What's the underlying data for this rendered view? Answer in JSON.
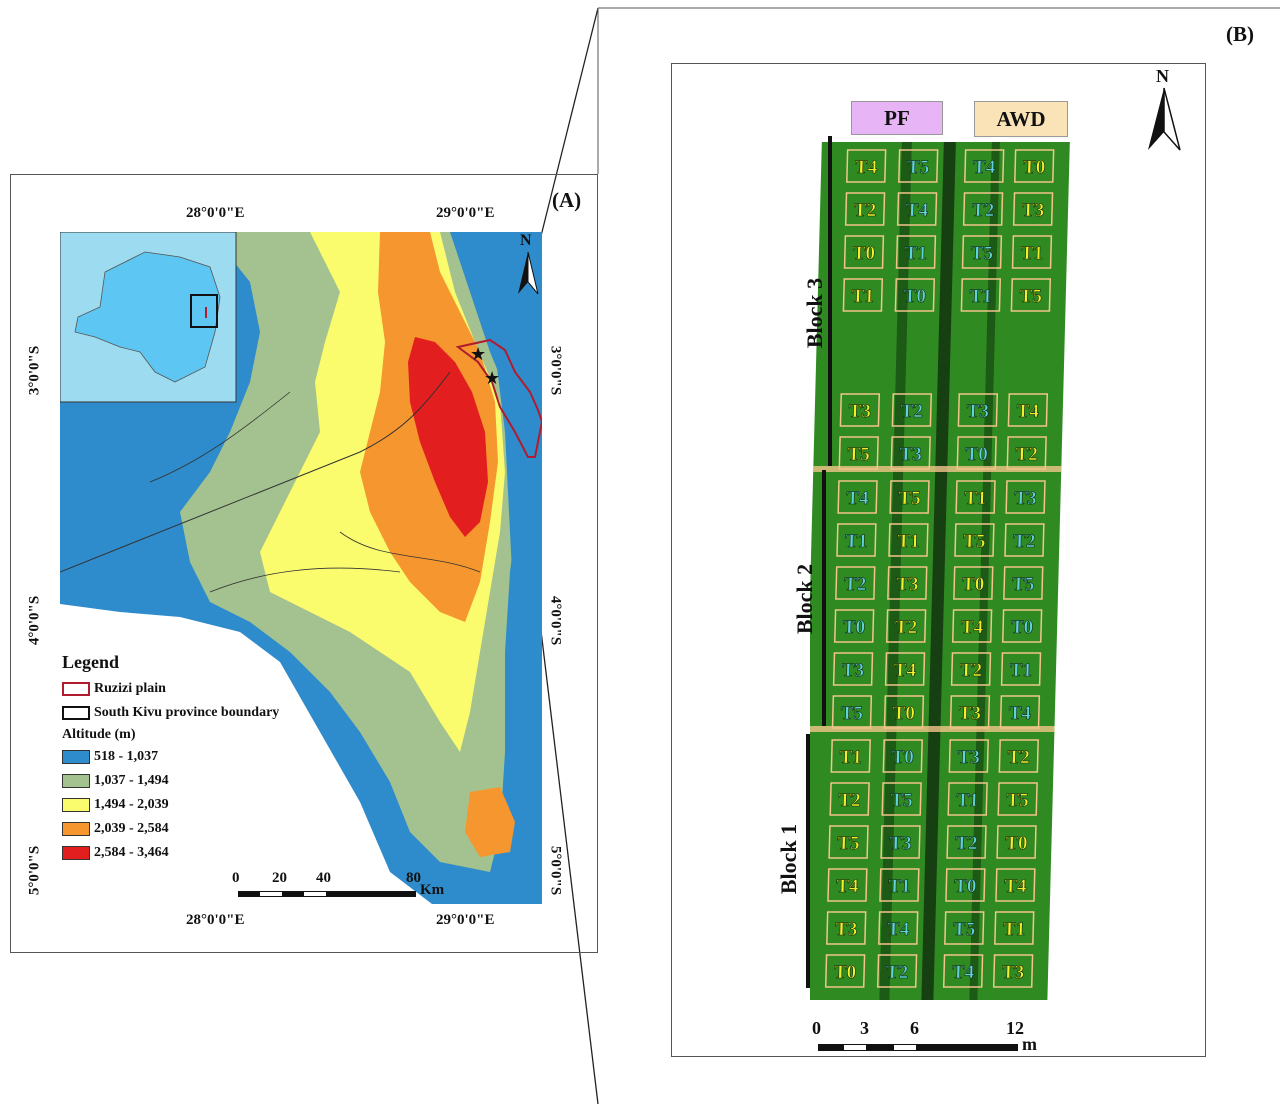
{
  "panel_a": {
    "label": "(A)",
    "top_coords": [
      "28°0'0\"E",
      "29°0'0\"E"
    ],
    "bottom_coords": [
      "28°0'0\"E",
      "29°0'0\"E"
    ],
    "left_coords": [
      "3°0'0\"S",
      "4°0'0\"S",
      "5°0'0\"S"
    ],
    "right_coords": [
      "3°0'0\"S",
      "4°0'0\"S",
      "5°0'0\"S"
    ],
    "north": "N",
    "legend": {
      "title": "Legend",
      "ruzizi": "Ruzizi plain",
      "province": "South Kivu province boundary",
      "altitude_title": "Altitude (m)",
      "classes": [
        {
          "label": "518 - 1,037",
          "color": "#2f8ccc"
        },
        {
          "label": "1,037 - 1,494",
          "color": "#a3c28f"
        },
        {
          "label": "1,494 - 2,039",
          "color": "#fbfb6e"
        },
        {
          "label": "2,039 - 2,584",
          "color": "#f6962f"
        },
        {
          "label": "2,584 - 3,464",
          "color": "#e31e1e"
        }
      ]
    },
    "scale": {
      "ticks": [
        "0",
        "20",
        "40",
        "80"
      ],
      "unit": "Km"
    },
    "colors": {
      "inset_bg": "#9ddcf0",
      "country": "#5ec6f2",
      "ruzizi": "#b01c2e"
    }
  },
  "panel_b": {
    "label": "(B)",
    "north": "N",
    "treatments": {
      "pf": "PF",
      "awd": "AWD"
    },
    "blocks": [
      "Block 3",
      "Block 2",
      "Block 1"
    ],
    "scale": {
      "ticks": [
        "0",
        "3",
        "6",
        "12"
      ],
      "unit": "m"
    },
    "colors": {
      "field": "#2f8a22",
      "dark": "#163f12",
      "plot_border": "#f2c58a",
      "yellow_label": "#f2ef2a",
      "cyan_label": "#5fd2dc",
      "pf_bg": "#e7b5f5",
      "awd_bg": "#fbe3b8"
    },
    "plots": [
      [
        "T4",
        "T5",
        "T4",
        "T0"
      ],
      [
        "T2",
        "T4",
        "T2",
        "T3"
      ],
      [
        "T0",
        "T1",
        "T5",
        "T1"
      ],
      [
        "T1",
        "T0",
        "T1",
        "T5"
      ],
      [
        "T3",
        "T2",
        "T3",
        "T4"
      ],
      [
        "T5",
        "T3",
        "T0",
        "T2"
      ],
      [
        "T4",
        "T5",
        "T1",
        "T3"
      ],
      [
        "T1",
        "T1",
        "T5",
        "T2"
      ],
      [
        "T2",
        "T3",
        "T0",
        "T5"
      ],
      [
        "T0",
        "T2",
        "T4",
        "T0"
      ],
      [
        "T3",
        "T4",
        "T2",
        "T1"
      ],
      [
        "T5",
        "T0",
        "T3",
        "T4"
      ],
      [
        "T1",
        "T0",
        "T3",
        "T2"
      ],
      [
        "T2",
        "T5",
        "T1",
        "T5"
      ],
      [
        "T5",
        "T3",
        "T2",
        "T0"
      ],
      [
        "T4",
        "T1",
        "T0",
        "T4"
      ],
      [
        "T3",
        "T4",
        "T5",
        "T1"
      ],
      [
        "T0",
        "T2",
        "T4",
        "T3"
      ]
    ],
    "plot_colors": [
      [
        "y",
        "c",
        "c",
        "y"
      ],
      [
        "y",
        "c",
        "c",
        "y"
      ],
      [
        "y",
        "c",
        "c",
        "y"
      ],
      [
        "y",
        "c",
        "c",
        "y"
      ],
      [
        "y",
        "c",
        "c",
        "y"
      ],
      [
        "y",
        "c",
        "c",
        "y"
      ],
      [
        "c",
        "y",
        "y",
        "c"
      ],
      [
        "c",
        "y",
        "y",
        "c"
      ],
      [
        "c",
        "y",
        "y",
        "c"
      ],
      [
        "c",
        "y",
        "y",
        "c"
      ],
      [
        "c",
        "y",
        "y",
        "c"
      ],
      [
        "c",
        "y",
        "y",
        "c"
      ],
      [
        "y",
        "c",
        "c",
        "y"
      ],
      [
        "y",
        "c",
        "c",
        "y"
      ],
      [
        "y",
        "c",
        "c",
        "y"
      ],
      [
        "y",
        "c",
        "c",
        "y"
      ],
      [
        "y",
        "c",
        "c",
        "y"
      ],
      [
        "y",
        "c",
        "c",
        "y"
      ]
    ]
  }
}
